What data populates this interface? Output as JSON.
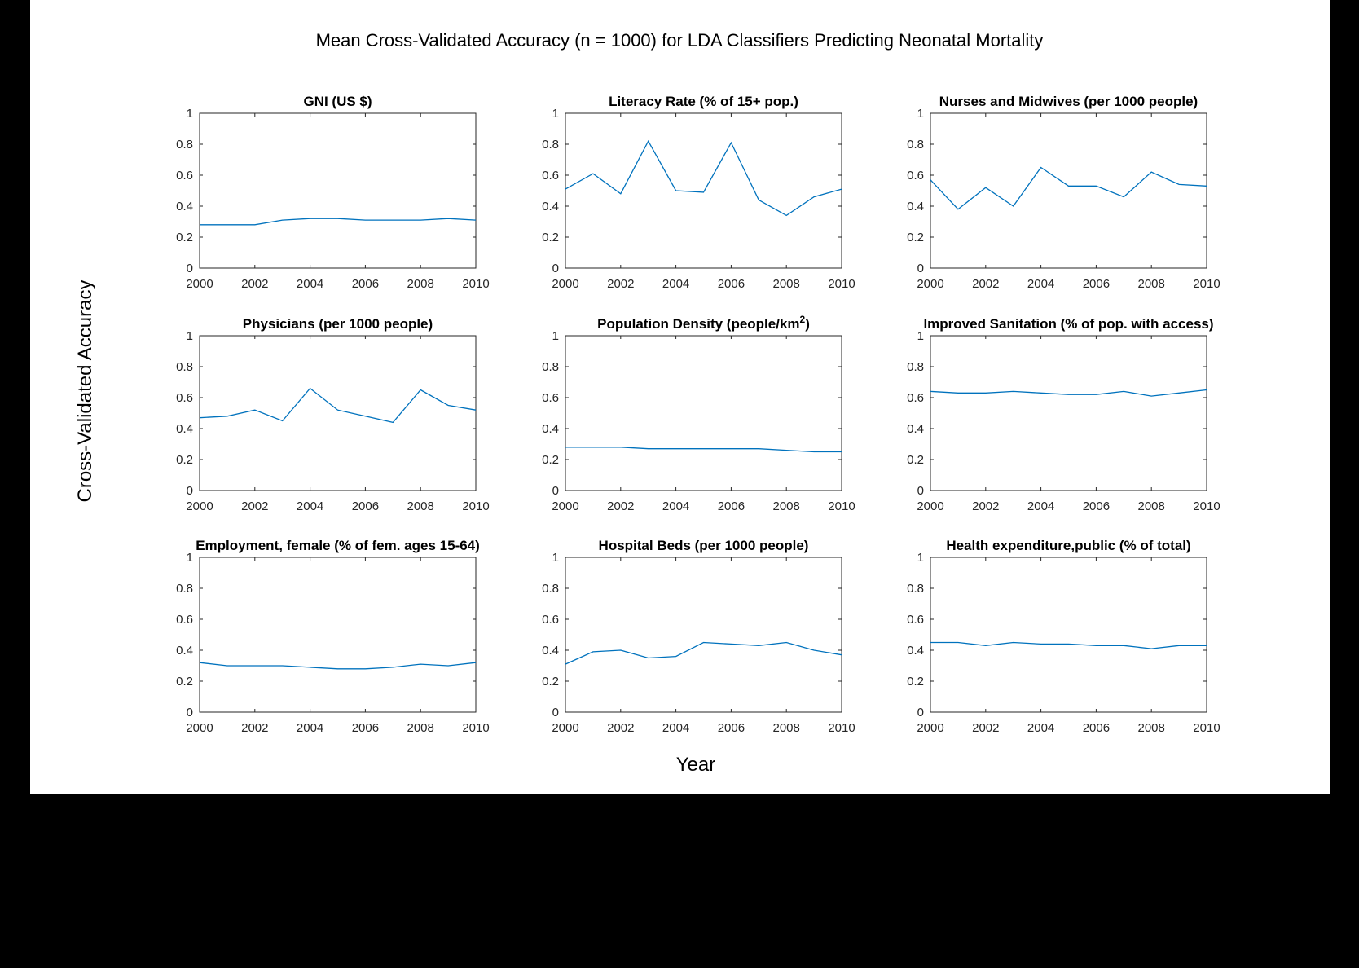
{
  "chart_data": {
    "type": "line",
    "title": "Mean Cross-Validated Accuracy (n = 1000) for LDA Classifiers Predicting Neonatal Mortality",
    "xlabel": "Year",
    "ylabel": "Cross-Validated Accuracy",
    "line_color": "#0072BD",
    "xlim": [
      2000,
      2010
    ],
    "ylim": [
      0,
      1
    ],
    "xticks": [
      "2000",
      "2002",
      "2004",
      "2006",
      "2008",
      "2010"
    ],
    "yticks": [
      "0",
      "0.2",
      "0.4",
      "0.6",
      "0.8",
      "1"
    ],
    "grid": false,
    "subplots": [
      {
        "title": "GNI (US $)",
        "x": [
          2000,
          2001,
          2002,
          2003,
          2004,
          2005,
          2006,
          2007,
          2008,
          2009,
          2010
        ],
        "y": [
          0.28,
          0.28,
          0.28,
          0.31,
          0.32,
          0.32,
          0.31,
          0.31,
          0.31,
          0.32,
          0.31
        ]
      },
      {
        "title": "Literacy Rate (% of 15+ pop.)",
        "x": [
          2000,
          2001,
          2002,
          2003,
          2004,
          2005,
          2006,
          2007,
          2008,
          2009,
          2010
        ],
        "y": [
          0.51,
          0.61,
          0.48,
          0.82,
          0.5,
          0.49,
          0.81,
          0.44,
          0.34,
          0.46,
          0.51
        ]
      },
      {
        "title": "Nurses and Midwives (per 1000 people)",
        "x": [
          2000,
          2001,
          2002,
          2003,
          2004,
          2005,
          2006,
          2007,
          2008,
          2009,
          2010
        ],
        "y": [
          0.57,
          0.38,
          0.52,
          0.4,
          0.65,
          0.53,
          0.53,
          0.46,
          0.62,
          0.54,
          0.53
        ]
      },
      {
        "title": "Physicians (per 1000 people)",
        "x": [
          2000,
          2001,
          2002,
          2003,
          2004,
          2005,
          2006,
          2007,
          2008,
          2009,
          2010
        ],
        "y": [
          0.47,
          0.48,
          0.52,
          0.45,
          0.66,
          0.52,
          0.48,
          0.44,
          0.65,
          0.55,
          0.52
        ]
      },
      {
        "title": "Population Density (people/km",
        "title_sup": "2",
        "title_end": ")",
        "x": [
          2000,
          2001,
          2002,
          2003,
          2004,
          2005,
          2006,
          2007,
          2008,
          2009,
          2010
        ],
        "y": [
          0.28,
          0.28,
          0.28,
          0.27,
          0.27,
          0.27,
          0.27,
          0.27,
          0.26,
          0.25,
          0.25
        ]
      },
      {
        "title": "Improved Sanitation (% of pop. with access)",
        "x": [
          2000,
          2001,
          2002,
          2003,
          2004,
          2005,
          2006,
          2007,
          2008,
          2009,
          2010
        ],
        "y": [
          0.64,
          0.63,
          0.63,
          0.64,
          0.63,
          0.62,
          0.62,
          0.64,
          0.61,
          0.63,
          0.65
        ]
      },
      {
        "title": "Employment, female (% of fem. ages 15-64)",
        "x": [
          2000,
          2001,
          2002,
          2003,
          2004,
          2005,
          2006,
          2007,
          2008,
          2009,
          2010
        ],
        "y": [
          0.32,
          0.3,
          0.3,
          0.3,
          0.29,
          0.28,
          0.28,
          0.29,
          0.31,
          0.3,
          0.32
        ]
      },
      {
        "title": "Hospital Beds (per 1000 people)",
        "x": [
          2000,
          2001,
          2002,
          2003,
          2004,
          2005,
          2006,
          2007,
          2008,
          2009,
          2010
        ],
        "y": [
          0.31,
          0.39,
          0.4,
          0.35,
          0.36,
          0.45,
          0.44,
          0.43,
          0.45,
          0.4,
          0.37
        ]
      },
      {
        "title": "Health expenditure,public (% of total)",
        "x": [
          2000,
          2001,
          2002,
          2003,
          2004,
          2005,
          2006,
          2007,
          2008,
          2009,
          2010
        ],
        "y": [
          0.45,
          0.45,
          0.43,
          0.45,
          0.44,
          0.44,
          0.43,
          0.43,
          0.41,
          0.43,
          0.43
        ]
      }
    ]
  }
}
